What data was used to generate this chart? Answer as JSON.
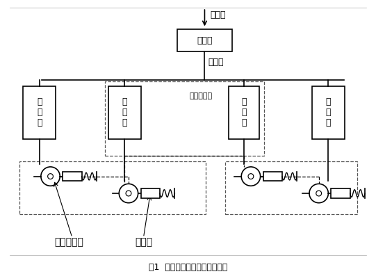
{
  "title": "图1  快捷货车电子防滑器原理图",
  "bg_color": "#ffffff",
  "box_color": "#000000",
  "relay_valve_label": "中继阀",
  "main_pipe_label": "总风管",
  "brake_pipe_label": "制动管",
  "antislip_valve_label": "防\n滑\n阀",
  "controller_label": "防滑控制器",
  "speed_sensor_label": "速度传感器",
  "brake_cylinder_label": "制动缸",
  "font_size_zh": 9,
  "font_size_small_zh": 8,
  "font_size_caption": 9
}
